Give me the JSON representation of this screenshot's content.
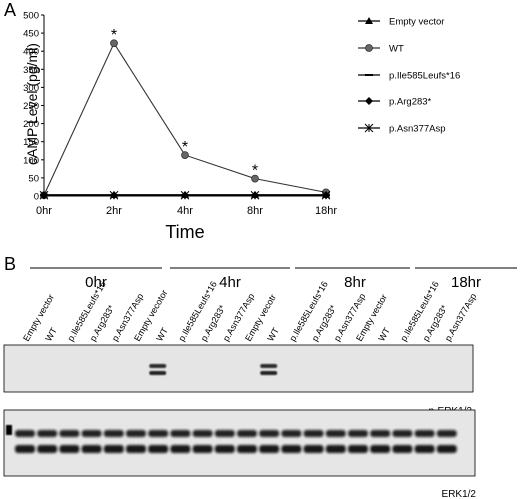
{
  "panels": {
    "a_label": "A",
    "b_label": "B"
  },
  "chart_data": {
    "type": "line",
    "xlabel": "Time",
    "ylabel": "cAMP Level (pg/ml)",
    "categories": [
      "0hr",
      "2hr",
      "4hr",
      "8hr",
      "18hr"
    ],
    "ylim": [
      0,
      500
    ],
    "yticks": [
      0,
      50,
      100,
      150,
      200,
      250,
      300,
      350,
      400,
      450,
      500
    ],
    "grid": false,
    "legend_position": "right",
    "series": [
      {
        "name": "Empty vector",
        "marker": "triangle",
        "values": [
          3,
          3,
          3,
          3,
          3
        ]
      },
      {
        "name": "WT",
        "marker": "circle",
        "values": [
          2,
          422,
          113,
          48,
          10
        ]
      },
      {
        "name": "p.Ile585Leufs*16",
        "marker": "dash",
        "values": [
          2,
          2,
          2,
          2,
          2
        ]
      },
      {
        "name": "p.Arg283*",
        "marker": "diamond",
        "values": [
          2,
          2,
          2,
          2,
          2
        ]
      },
      {
        "name": "p.Asn377Asp",
        "marker": "asterisk",
        "values": [
          2,
          2,
          2,
          2,
          2
        ]
      }
    ],
    "annotations": [
      {
        "text": "*",
        "category": "2hr",
        "value": 422
      },
      {
        "text": "*",
        "category": "4hr",
        "value": 113
      },
      {
        "text": "*",
        "category": "8hr",
        "value": 48
      }
    ]
  },
  "blot": {
    "groups": [
      "0hr",
      "4hr",
      "8hr",
      "18hr"
    ],
    "lanes": [
      "Empty vector",
      "WT",
      "p.Ile585Leufs*16",
      "p.Arg283*",
      "p.Asn377Asp",
      "Empty vecotor",
      "WT",
      "p.Ile585Leufs*16",
      "p.Arg283*",
      "p.Asn377Asp",
      "Empty vecotr",
      "WT",
      "p.Ile585Leufs*16",
      "p.Arg283*",
      "p.Asn377Asp",
      "Empty vector",
      "WT",
      "p.Ile585Leufs*16",
      "p.Arg283*",
      "p.Asn377Asp"
    ],
    "top_label": "p-ERK1/2",
    "bottom_label": "ERK1/2",
    "top_band_lanes": [
      6,
      11
    ]
  },
  "colors": {
    "wt_line": "#333333",
    "wt_marker": "#666666",
    "other_lines": "#000000",
    "blot_background": "#e3e3e3",
    "band": "#111111"
  }
}
